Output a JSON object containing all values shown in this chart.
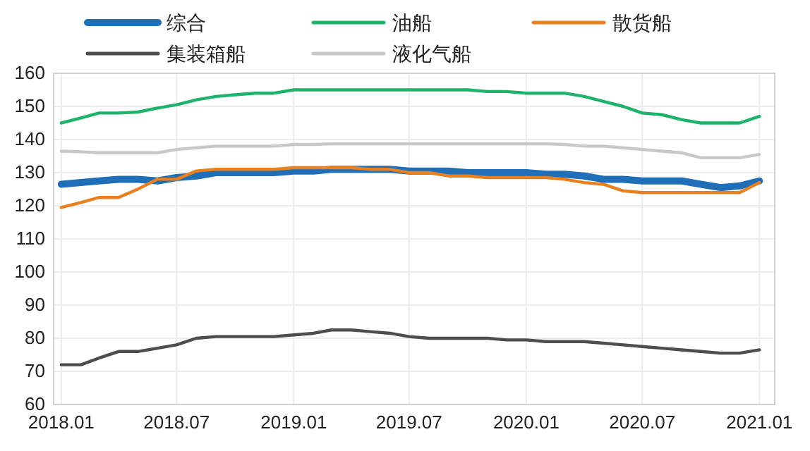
{
  "chart_data": {
    "type": "line",
    "x": [
      "2018-01",
      "2018-02",
      "2018-03",
      "2018-04",
      "2018-05",
      "2018-06",
      "2018-07",
      "2018-08",
      "2018-09",
      "2018-10",
      "2018-11",
      "2018-12",
      "2019-01",
      "2019-02",
      "2019-03",
      "2019-04",
      "2019-05",
      "2019-06",
      "2019-07",
      "2019-08",
      "2019-09",
      "2019-10",
      "2019-11",
      "2019-12",
      "2020-01",
      "2020-02",
      "2020-03",
      "2020-04",
      "2020-05",
      "2020-06",
      "2020-07",
      "2020-08",
      "2020-09",
      "2020-10",
      "2020-11",
      "2020-12",
      "2021-01"
    ],
    "series": [
      {
        "name": "综合",
        "color": "#1f6fb8",
        "values": [
          126.5,
          127,
          127.5,
          128,
          128,
          127.5,
          128.5,
          129,
          130,
          130,
          130,
          130,
          130.5,
          130.5,
          131,
          131,
          131,
          131,
          130.5,
          130.5,
          130.5,
          130,
          130,
          130,
          130,
          129.5,
          129.5,
          129,
          128,
          128,
          127.5,
          127.5,
          127.5,
          126.5,
          125.5,
          126,
          127.5
        ]
      },
      {
        "name": "油船",
        "color": "#1db36b",
        "values": [
          145,
          146.5,
          148,
          148,
          148.3,
          149.5,
          150.5,
          152,
          153,
          153.5,
          154,
          154,
          155,
          155,
          155,
          155,
          155,
          155,
          155,
          155,
          155,
          155,
          154.5,
          154.5,
          154,
          154,
          154,
          153,
          151.5,
          150,
          148,
          147.5,
          146,
          145,
          145,
          145,
          147
        ]
      },
      {
        "name": "散货船",
        "color": "#e8801f",
        "values": [
          119.5,
          121,
          122.5,
          122.5,
          125,
          128,
          128,
          130.5,
          131,
          131,
          131,
          131,
          131.5,
          131.5,
          131.5,
          131.5,
          131,
          131,
          130,
          130,
          129,
          129,
          128.5,
          128.5,
          128.5,
          128.5,
          128,
          127,
          126.5,
          124.5,
          124,
          124,
          124,
          124,
          124,
          124,
          127
        ]
      },
      {
        "name": "集装箱船",
        "color": "#4d4d4d",
        "values": [
          72,
          72,
          74,
          76,
          76,
          77,
          78,
          80,
          80.5,
          80.5,
          80.5,
          80.5,
          81,
          81.5,
          82.5,
          82.5,
          82,
          81.5,
          80.5,
          80,
          80,
          80,
          80,
          79.5,
          79.5,
          79,
          79,
          79,
          78.5,
          78,
          77.5,
          77,
          76.5,
          76,
          75.5,
          75.5,
          76.5
        ]
      },
      {
        "name": "液化气船",
        "color": "#c8c8c8",
        "values": [
          136.5,
          136.3,
          136,
          136,
          136,
          136,
          137,
          137.5,
          138,
          138,
          138,
          138,
          138.5,
          138.5,
          138.7,
          138.7,
          138.7,
          138.7,
          138.7,
          138.7,
          138.7,
          138.7,
          138.7,
          138.7,
          138.7,
          138.7,
          138.5,
          138,
          138,
          137.5,
          137,
          136.5,
          136,
          134.5,
          134.5,
          134.5,
          135.5
        ]
      }
    ],
    "xlim": [
      "2017-12-20",
      "2021-01-25"
    ],
    "xticks": [
      {
        "value": "2018-01",
        "label": "2018.01"
      },
      {
        "value": "2018-07",
        "label": "2018.07"
      },
      {
        "value": "2019-01",
        "label": "2019.01"
      },
      {
        "value": "2019-07",
        "label": "2019.07"
      },
      {
        "value": "2020-01",
        "label": "2020.01"
      },
      {
        "value": "2020-07",
        "label": "2020.07"
      },
      {
        "value": "2021-01",
        "label": "2021.01"
      }
    ],
    "ylim": [
      60,
      160
    ],
    "yticks": [
      60,
      70,
      80,
      90,
      100,
      110,
      120,
      130,
      140,
      150,
      160
    ],
    "grid": true,
    "legend": "top",
    "marker": "none",
    "line_style": "solid"
  }
}
